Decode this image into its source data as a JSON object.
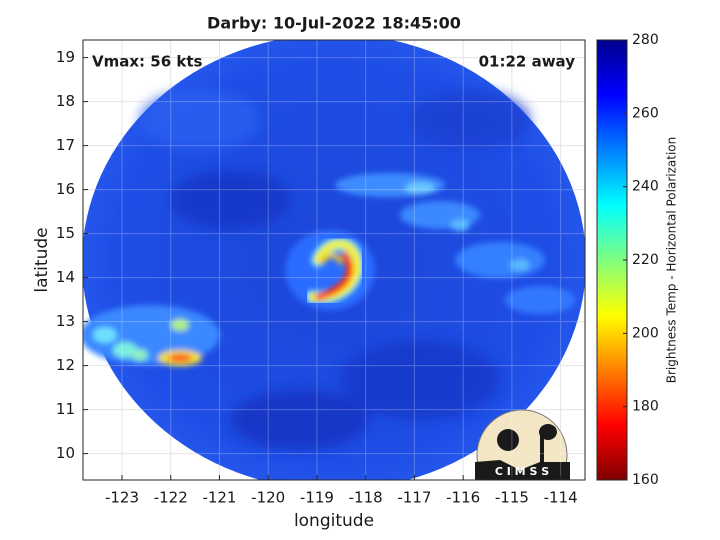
{
  "chart_data": {
    "type": "map",
    "title": "Darby: 10-Jul-2022 18:45:00",
    "annotations": [
      "Vmax: 56 kts",
      "01:22 away"
    ],
    "xlabel": "longitude",
    "ylabel": "latitude",
    "xlim": [
      -123.8,
      -113.5
    ],
    "xticks": [
      -123,
      -122,
      -121,
      -120,
      -119,
      -118,
      -117,
      -116,
      -115,
      -114
    ],
    "ylim": [
      9.4,
      19.4
    ],
    "yticks": [
      10,
      11,
      12,
      13,
      14,
      15,
      16,
      17,
      18,
      19
    ],
    "grid": true,
    "colorbar": {
      "label": "Brightness Temp - Horizontal Polarization",
      "lim": [
        160,
        280
      ],
      "ticks": [
        160,
        180,
        200,
        220,
        240,
        260,
        280
      ],
      "colormap": "jet",
      "reversed": true
    },
    "logo": "C I M S S"
  }
}
